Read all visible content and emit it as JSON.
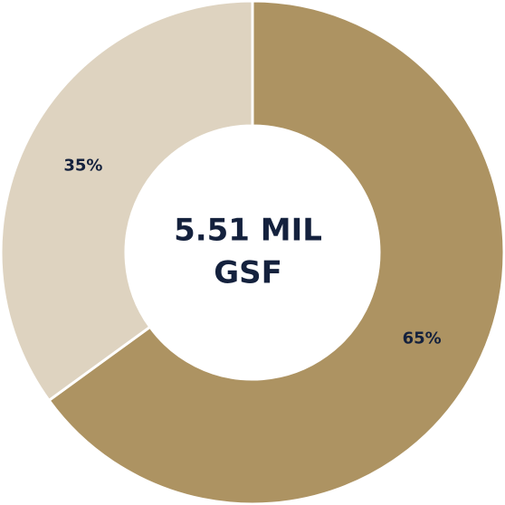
{
  "chart_data": {
    "type": "pie",
    "values": [
      65,
      35
    ],
    "value_labels": [
      "65%",
      "35%"
    ],
    "colors": [
      "#ad9362",
      "#ded3c0"
    ],
    "center_label": [
      "5.51 MIL",
      "GSF"
    ]
  }
}
